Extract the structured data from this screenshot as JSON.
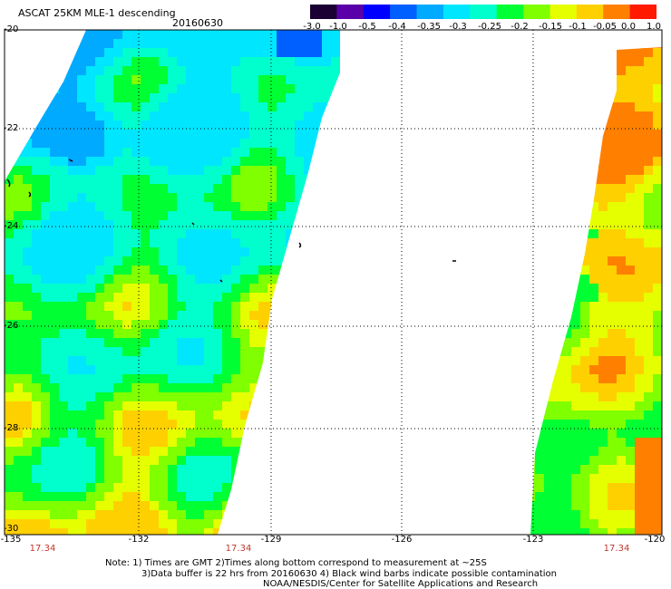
{
  "header": {
    "title": "ASCAT 25KM MLE-1 descending",
    "date": "20160630"
  },
  "colorbar": {
    "labels": [
      "-3.0",
      "-1.0",
      "-0.5",
      "-0.4",
      "-0.35",
      "-0.3",
      "-0.25",
      "-0.2",
      "-0.15",
      "-0.1",
      "-0.05",
      "0.0",
      "1.0"
    ],
    "colors": [
      "#1a0033",
      "#5a00a8",
      "#0000ff",
      "#0060ff",
      "#00aaff",
      "#00e6ff",
      "#00ffcc",
      "#00ff33",
      "#7fff00",
      "#e6ff00",
      "#ffd000",
      "#ff8000",
      "#ff1a00"
    ]
  },
  "axes": {
    "lat_labels": [
      "-20",
      "-22",
      "-24",
      "-26",
      "-28",
      "-30"
    ],
    "lon_labels": [
      "-135",
      "-132",
      "-129",
      "-126",
      "-123",
      "-120"
    ],
    "time_labels": [
      "17.34",
      "17.34",
      "17.34"
    ]
  },
  "notes": {
    "line1": "Note: 1) Times are GMT 2)Times along bottom correspond to measurement at ~25S",
    "line2": "3)Data buffer is 22 hrs from 20160630 4) Black wind barbs indicate possible contamination",
    "credit": "NOAA/NESDIS/Center for Satellite Applications and Research"
  }
}
